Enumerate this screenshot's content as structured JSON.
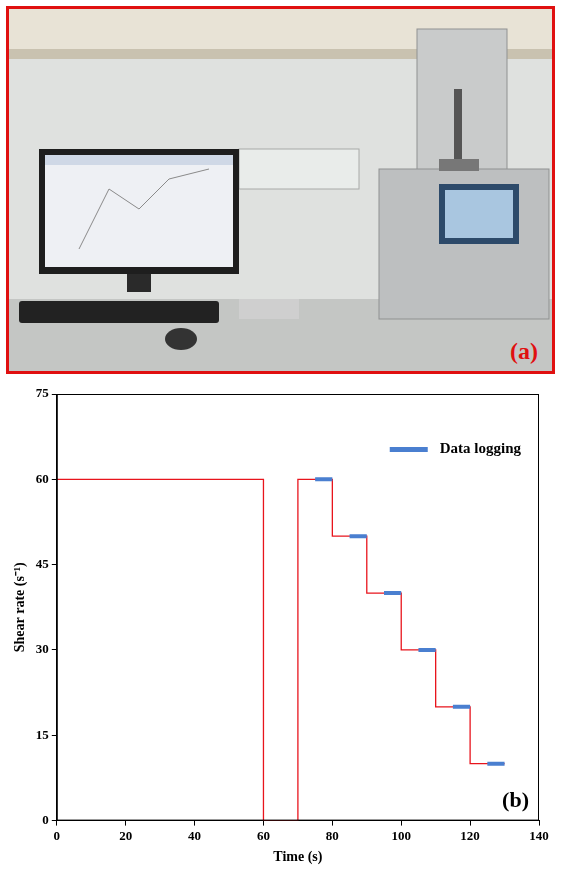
{
  "photo_panel": {
    "label": "(a)"
  },
  "chart_data": {
    "type": "line",
    "x_label": "Time (s)",
    "y_label": "Shear rate (s⁻¹)",
    "annotations": [
      "(b)"
    ],
    "xlim": [
      0,
      140
    ],
    "xticks": [
      0,
      20,
      40,
      60,
      80,
      100,
      120,
      140
    ],
    "ylim": [
      0,
      75
    ],
    "yticks": [
      0,
      15,
      30,
      45,
      60,
      75
    ],
    "grid": false,
    "legend": "top-right",
    "series": [
      {
        "color": "#e8141c",
        "line_style": "solid",
        "x": [
          0,
          60,
          60,
          70,
          70,
          80,
          80,
          90,
          90,
          100,
          100,
          110,
          110,
          120,
          120,
          130
        ],
        "values": [
          60,
          60,
          0,
          0,
          60,
          60,
          50,
          50,
          40,
          40,
          30,
          30,
          20,
          20,
          10,
          10
        ]
      },
      {
        "name": "Data logging",
        "color": "#4a7fd0",
        "line_style": "solid",
        "x": [
          75,
          80,
          null,
          85,
          90,
          null,
          95,
          100,
          null,
          105,
          110,
          null,
          115,
          120,
          null,
          125,
          130
        ],
        "values": [
          60,
          60,
          null,
          50,
          50,
          null,
          40,
          40,
          null,
          30,
          30,
          null,
          20,
          20,
          null,
          10,
          10
        ]
      }
    ]
  }
}
